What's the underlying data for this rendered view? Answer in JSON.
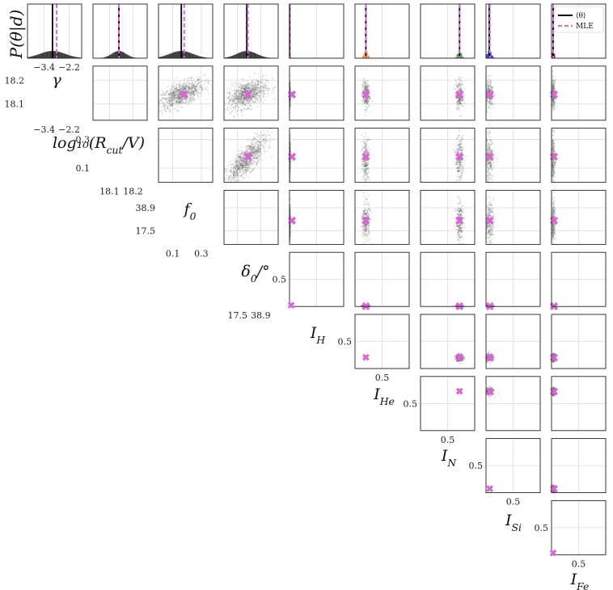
{
  "chart_data": {
    "type": "scatter",
    "subtype": "corner-plot",
    "diag_ylabel": "P(θ|d)",
    "parameters": [
      {
        "key": "gamma",
        "label_main": "γ",
        "label_sub": "",
        "ticks": [
          -3.4,
          -2.2
        ],
        "tick_labels": [
          "−3.4",
          "−2.2"
        ],
        "range": [
          -4.2,
          -1.6
        ],
        "mle": -2.8,
        "mean": -3.0,
        "sd": 0.6
      },
      {
        "key": "logR",
        "label_main": "log₁₀(R",
        "label_sub": "cut",
        "label_tail": "/V)",
        "ticks": [
          18.1,
          18.2
        ],
        "tick_labels": [
          "18.1",
          "18.2"
        ],
        "range": [
          18.03,
          18.26
        ],
        "mle": 18.14,
        "mean": 18.14,
        "sd": 0.03
      },
      {
        "key": "f0",
        "label_main": "f",
        "label_sub": "0",
        "ticks": [
          0.1,
          0.3
        ],
        "tick_labels": [
          "0.1",
          "0.3"
        ],
        "range": [
          0.0,
          0.38
        ],
        "mle": 0.18,
        "mean": 0.16,
        "sd": 0.08
      },
      {
        "key": "delta0",
        "label_main": "δ",
        "label_sub": "0",
        "label_tail": "/°",
        "ticks": [
          17.5,
          38.9
        ],
        "tick_labels": [
          "17.5",
          "38.9"
        ],
        "range": [
          5,
          55
        ],
        "mle": 27,
        "mean": 26,
        "sd": 9
      },
      {
        "key": "IH",
        "label_main": "I",
        "label_sub": "H",
        "ticks": [
          0.5
        ],
        "tick_labels": [
          "0.5"
        ],
        "range": [
          0,
          1
        ],
        "mle": 0.0,
        "mean": 0.005,
        "sd": 0.005
      },
      {
        "key": "IHe",
        "label_main": "I",
        "label_sub": "He",
        "ticks": [
          0.5
        ],
        "tick_labels": [
          "0.5"
        ],
        "range": [
          0,
          1
        ],
        "mle": 0.2,
        "mean": 0.2,
        "sd": 0.035
      },
      {
        "key": "IN",
        "label_main": "I",
        "label_sub": "N",
        "ticks": [
          0.5
        ],
        "tick_labels": [
          "0.5"
        ],
        "range": [
          0,
          1
        ],
        "mle": 0.72,
        "mean": 0.72,
        "sd": 0.035
      },
      {
        "key": "ISi",
        "label_main": "I",
        "label_sub": "Si",
        "ticks": [
          0.5
        ],
        "tick_labels": [
          "0.5"
        ],
        "range": [
          0,
          1
        ],
        "mle": 0.07,
        "mean": 0.06,
        "sd": 0.04
      },
      {
        "key": "IFe",
        "label_main": "I",
        "label_sub": "Fe",
        "ticks": [
          0.5
        ],
        "tick_labels": [
          "0.5"
        ],
        "range": [
          0,
          1
        ],
        "mle": 0.03,
        "mean": 0.03,
        "sd": 0.02
      }
    ],
    "correlations": {
      "gamma|logR": 0.85,
      "logR|f0": 0.6,
      "f0|delta0": 0.8,
      "gamma|f0": 0.5,
      "gamma|delta0": 0.4,
      "logR|delta0": 0.45
    },
    "diag_hist_colors": [
      "#1a1a1a",
      "#1a1a1a",
      "#1a1a1a",
      "#1a1a1a",
      "#d81b60",
      "#ff8c00",
      "#2e8b2e",
      "#1f1fd6",
      "#8b0000"
    ],
    "legend": {
      "placement": "top-right",
      "entries": [
        {
          "label": "⟨θ⟩",
          "color": "#000000",
          "dash": false
        },
        {
          "label": "MLE",
          "color": "#d966d6",
          "dash": true
        }
      ]
    },
    "colors": {
      "mean_line": "#000000",
      "mle_line": "#d966d6",
      "mle_marker": "#d966d6",
      "samples": "#555555",
      "grid": "#dcdcdc"
    },
    "grid": true
  }
}
